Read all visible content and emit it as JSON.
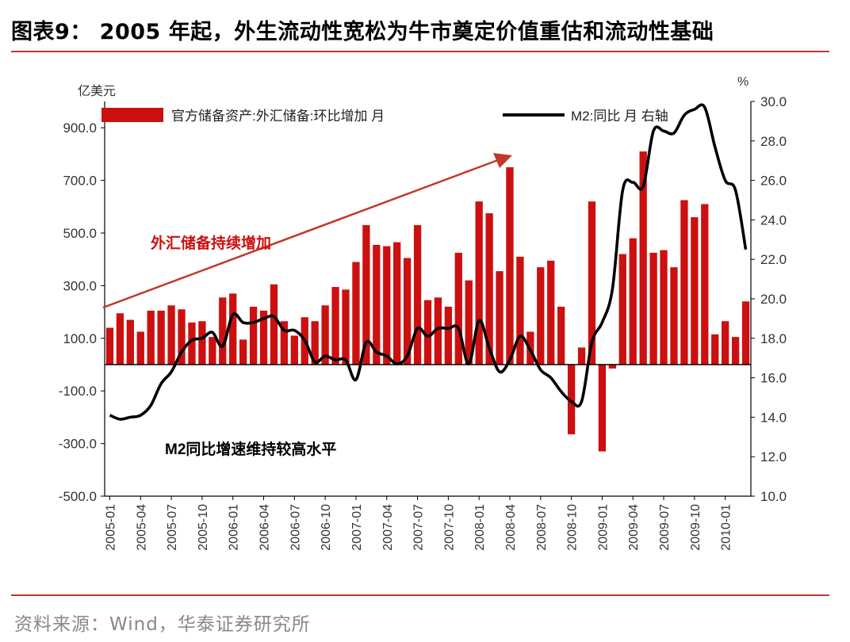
{
  "header": {
    "title": "图表9： 2005 年起，外生流动性宽松为牛市奠定价值重估和流动性基础"
  },
  "footer": {
    "source": "资料来源：Wind，华泰证券研究所"
  },
  "colors": {
    "bar": "#cc1010",
    "line": "#000000",
    "rule": "#c0392b",
    "arrow": "#c0392b"
  },
  "chart_data": {
    "type": "bar",
    "left_unit": "亿美元",
    "right_unit": "%",
    "y_left": {
      "min": -500,
      "max": 1000,
      "ticks": [
        -500,
        -300,
        -100,
        100,
        300,
        500,
        700,
        900
      ],
      "tick_labels": [
        "-500.0",
        "-300.0",
        "-100.0",
        "100.0",
        "300.0",
        "500.0",
        "700.0",
        "900.0"
      ]
    },
    "y_right": {
      "min": 10,
      "max": 30,
      "ticks": [
        10,
        12,
        14,
        16,
        18,
        20,
        22,
        24,
        26,
        28,
        30
      ],
      "tick_labels": [
        "10.0",
        "12.0",
        "14.0",
        "16.0",
        "18.0",
        "20.0",
        "22.0",
        "24.0",
        "26.0",
        "28.0",
        "30.0"
      ]
    },
    "x_tick_labels": [
      "2005-01",
      "2005-04",
      "2005-07",
      "2005-10",
      "2006-01",
      "2006-04",
      "2006-07",
      "2006-10",
      "2007-01",
      "2007-04",
      "2007-07",
      "2007-10",
      "2008-01",
      "2008-04",
      "2008-07",
      "2008-10",
      "2009-01",
      "2009-04",
      "2009-07",
      "2009-10",
      "2010-01"
    ],
    "legend": {
      "bar_label": "官方储备资产:外汇储备:环比增加 月",
      "line_label": "M2:同比 月  右轴",
      "placement": "top"
    },
    "annotations": {
      "bars_note": "外汇储备持续增加",
      "line_note": "M2同比增速维持较高水平"
    },
    "series": [
      {
        "name": "官方储备资产:外汇储备:环比增加 月",
        "axis": "left",
        "type": "bar",
        "values": [
          140,
          195,
          170,
          125,
          205,
          205,
          225,
          210,
          160,
          165,
          105,
          255,
          270,
          95,
          220,
          205,
          305,
          165,
          110,
          180,
          165,
          225,
          295,
          285,
          390,
          530,
          455,
          450,
          465,
          405,
          530,
          245,
          255,
          220,
          425,
          320,
          620,
          575,
          355,
          750,
          410,
          125,
          370,
          395,
          220,
          -265,
          65,
          620,
          -330,
          -15,
          420,
          480,
          810,
          425,
          435,
          370,
          625,
          560,
          610,
          115,
          165,
          105,
          240
        ]
      },
      {
        "name": "M2:同比 月",
        "axis": "right",
        "type": "line",
        "values": [
          14.1,
          13.9,
          14.0,
          14.1,
          14.6,
          15.7,
          16.3,
          17.3,
          17.9,
          18.0,
          18.3,
          17.6,
          19.2,
          18.8,
          18.8,
          19.0,
          19.1,
          18.4,
          18.4,
          17.9,
          16.8,
          17.1,
          16.9,
          16.9,
          15.9,
          17.8,
          17.3,
          17.1,
          16.7,
          17.1,
          18.5,
          18.1,
          18.5,
          18.5,
          18.5,
          16.7,
          18.9,
          17.5,
          16.3,
          16.9,
          18.1,
          17.4,
          16.4,
          16.0,
          15.3,
          14.8,
          14.8,
          17.8,
          18.8,
          20.5,
          25.5,
          25.9,
          25.7,
          28.5,
          28.5,
          28.4,
          29.3,
          29.6,
          29.7,
          27.7,
          26.0,
          25.5,
          22.5
        ]
      }
    ]
  }
}
